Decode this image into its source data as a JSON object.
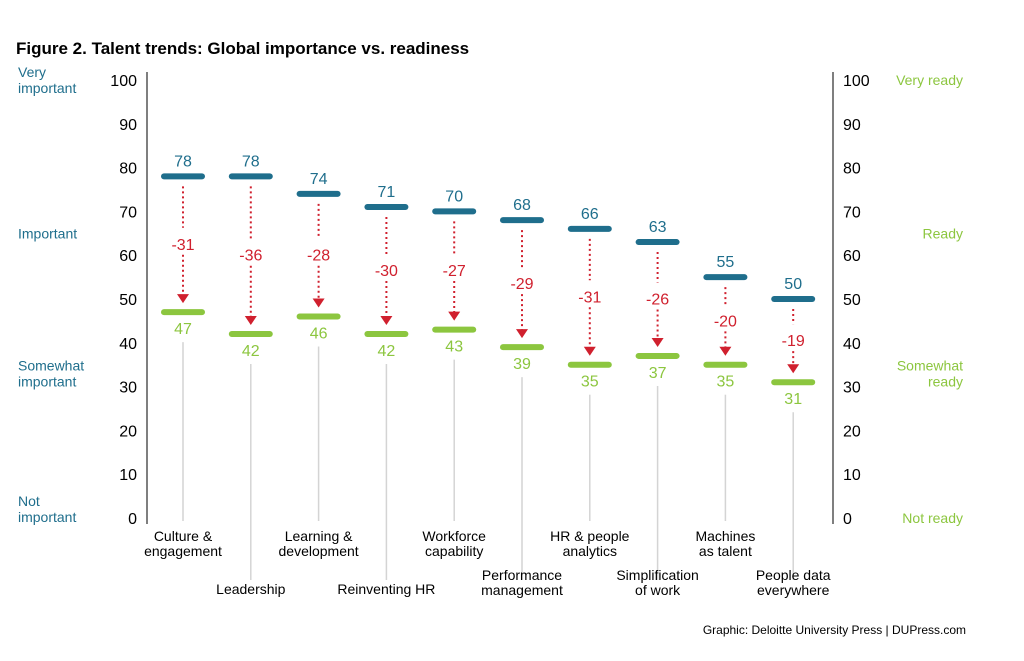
{
  "chart_data": {
    "type": "dumbbell",
    "title": "Figure 2. Talent trends: Global importance vs. readiness",
    "categories": [
      [
        "Culture &",
        "engagement"
      ],
      [
        "Leadership"
      ],
      [
        "Learning &",
        "development"
      ],
      [
        "Reinventing HR"
      ],
      [
        "Workforce",
        "capability"
      ],
      [
        "Performance",
        "management"
      ],
      [
        "HR & people",
        "analytics"
      ],
      [
        "Simplification",
        "of work"
      ],
      [
        "Machines",
        "as talent"
      ],
      [
        "People data",
        "everywhere"
      ]
    ],
    "series": [
      {
        "name": "Importance",
        "values": [
          78,
          78,
          74,
          71,
          70,
          68,
          66,
          63,
          55,
          50
        ]
      },
      {
        "name": "Readiness",
        "values": [
          47,
          42,
          46,
          42,
          43,
          39,
          35,
          37,
          35,
          31
        ]
      }
    ],
    "gaps": [
      "-31",
      "-36",
      "-28",
      "-30",
      "-27",
      "-29",
      "-31",
      "-26",
      "-20",
      "-19"
    ],
    "ylim": [
      0,
      100
    ],
    "yticks": [
      0,
      10,
      20,
      30,
      40,
      50,
      60,
      70,
      80,
      90,
      100
    ],
    "left_axis_labels": [
      {
        "value": 100,
        "lines": [
          "Very",
          "important"
        ]
      },
      {
        "value": 65,
        "lines": [
          "Important"
        ]
      },
      {
        "value": 33,
        "lines": [
          "Somewhat",
          "important"
        ]
      },
      {
        "value": 2,
        "lines": [
          "Not",
          "important"
        ]
      }
    ],
    "right_axis_labels": [
      {
        "value": 100,
        "lines": [
          "Very ready"
        ]
      },
      {
        "value": 65,
        "lines": [
          "Ready"
        ]
      },
      {
        "value": 33,
        "lines": [
          "Somewhat",
          "ready"
        ]
      },
      {
        "value": 0,
        "lines": [
          "Not ready"
        ]
      }
    ],
    "colors": {
      "importance": "#1f6e8c",
      "readiness": "#8cc63f",
      "gap": "#d0202e",
      "stem": "#d4d4d4",
      "axis": "#7f7f7f"
    },
    "credit": "Graphic: Deloitte University Press  |  DUPress.com"
  }
}
